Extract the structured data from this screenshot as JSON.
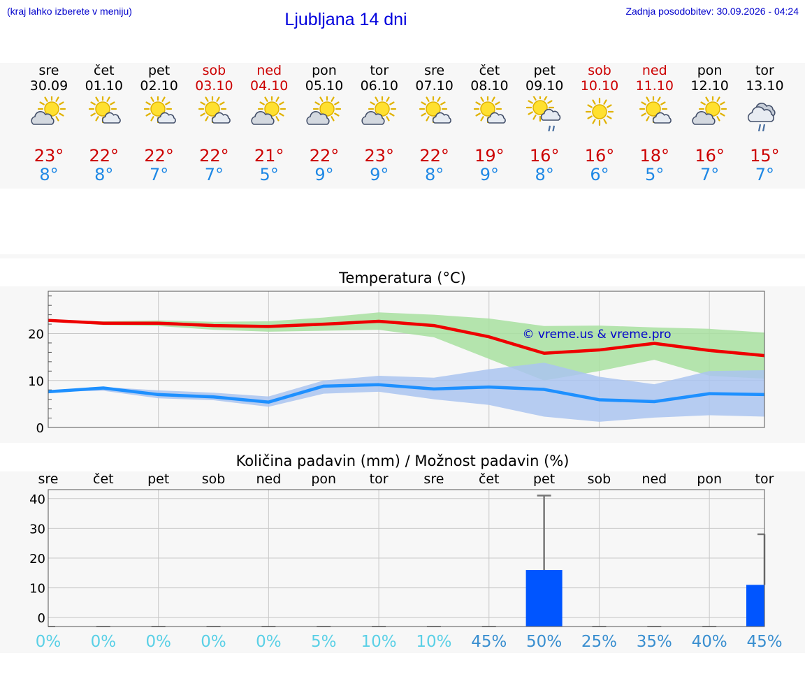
{
  "header": {
    "note": "(kraj lahko izberete v meniju)",
    "title": "Ljubljana 14 dni",
    "update": "Zadnja posodobitev: 30.09.2026 - 04:24"
  },
  "days": [
    {
      "name": "sre",
      "date": "30.09",
      "weekend": false,
      "icon": "sun-cloud-icon",
      "tmax": "23°",
      "tmin": "8°"
    },
    {
      "name": "čet",
      "date": "01.10",
      "weekend": false,
      "icon": "sun-small-cloud-icon",
      "tmax": "22°",
      "tmin": "8°"
    },
    {
      "name": "pet",
      "date": "02.10",
      "weekend": false,
      "icon": "sun-small-cloud-icon",
      "tmax": "22°",
      "tmin": "7°"
    },
    {
      "name": "sob",
      "date": "03.10",
      "weekend": true,
      "icon": "sun-small-cloud-icon",
      "tmax": "22°",
      "tmin": "7°"
    },
    {
      "name": "ned",
      "date": "04.10",
      "weekend": true,
      "icon": "sun-cloud-icon",
      "tmax": "21°",
      "tmin": "5°"
    },
    {
      "name": "pon",
      "date": "05.10",
      "weekend": false,
      "icon": "sun-cloud-icon",
      "tmax": "22°",
      "tmin": "9°"
    },
    {
      "name": "tor",
      "date": "06.10",
      "weekend": false,
      "icon": "sun-cloud-icon",
      "tmax": "23°",
      "tmin": "9°"
    },
    {
      "name": "sre",
      "date": "07.10",
      "weekend": false,
      "icon": "sun-small-cloud-icon",
      "tmax": "22°",
      "tmin": "8°"
    },
    {
      "name": "čet",
      "date": "08.10",
      "weekend": false,
      "icon": "sun-small-cloud-icon",
      "tmax": "19°",
      "tmin": "9°"
    },
    {
      "name": "pet",
      "date": "09.10",
      "weekend": false,
      "icon": "sun-cloud-rain-icon",
      "tmax": "16°",
      "tmin": "8°"
    },
    {
      "name": "sob",
      "date": "10.10",
      "weekend": true,
      "icon": "sun-icon",
      "tmax": "16°",
      "tmin": "6°"
    },
    {
      "name": "ned",
      "date": "11.10",
      "weekend": true,
      "icon": "sun-small-cloud-icon",
      "tmax": "18°",
      "tmin": "5°"
    },
    {
      "name": "pon",
      "date": "12.10",
      "weekend": false,
      "icon": "sun-cloud-icon",
      "tmax": "16°",
      "tmin": "7°"
    },
    {
      "name": "tor",
      "date": "13.10",
      "weekend": false,
      "icon": "cloud-rain-icon",
      "tmax": "15°",
      "tmin": "7°"
    }
  ],
  "colors": {
    "max_line": "#ee0000",
    "min_line": "#1e90ff",
    "max_band": "#a8e0a0",
    "min_band": "#aac4f0",
    "precip_bar": "#0055ff",
    "weekend_text": "#cc0000",
    "chance_light": "#5ad0e6",
    "chance_dark": "#3a8fd0"
  },
  "chart_data": [
    {
      "type": "line",
      "title": "Temperatura (°C)",
      "watermark": "© vreme.us & vreme.pro",
      "x": [
        "30.09",
        "01.10",
        "02.10",
        "03.10",
        "04.10",
        "05.10",
        "06.10",
        "07.10",
        "08.10",
        "09.10",
        "10.10",
        "11.10",
        "12.10",
        "13.10"
      ],
      "yticks": [
        0,
        10,
        20
      ],
      "ylim": [
        0,
        29
      ],
      "grid": true,
      "series": [
        {
          "key": "max",
          "values": [
            22.8,
            22.2,
            22.2,
            21.7,
            21.5,
            22.0,
            22.6,
            21.7,
            19.3,
            15.8,
            16.5,
            17.9,
            16.4,
            15.3
          ],
          "band_low": [
            22.6,
            21.8,
            21.6,
            20.8,
            20.4,
            20.6,
            20.8,
            19.2,
            14.6,
            10.0,
            12.0,
            14.4,
            11.0,
            10.4
          ],
          "band_high": [
            22.8,
            22.6,
            22.8,
            22.5,
            22.6,
            23.4,
            24.5,
            24.0,
            23.2,
            21.6,
            21.7,
            21.3,
            21.0,
            20.2
          ]
        },
        {
          "key": "min",
          "values": [
            7.6,
            8.4,
            7.0,
            6.5,
            5.4,
            8.8,
            9.1,
            8.2,
            8.6,
            8.1,
            5.9,
            5.5,
            7.2,
            7.0
          ],
          "band_low": [
            7.6,
            7.8,
            6.2,
            5.8,
            4.4,
            7.2,
            7.6,
            6.0,
            4.8,
            2.3,
            1.2,
            2.1,
            2.6,
            2.3
          ],
          "band_high": [
            7.8,
            8.6,
            7.9,
            7.4,
            6.6,
            10.0,
            11.0,
            10.6,
            12.4,
            13.8,
            10.8,
            9.2,
            12.0,
            12.2
          ]
        }
      ]
    },
    {
      "type": "bar",
      "title": "Količina padavin (mm) / Možnost padavin (%)",
      "categories": [
        "sre",
        "čet",
        "pet",
        "sob",
        "ned",
        "pon",
        "tor",
        "sre",
        "čet",
        "pet",
        "sob",
        "ned",
        "pon",
        "tor"
      ],
      "values": [
        0,
        0,
        0,
        0,
        0,
        0,
        0,
        0,
        0,
        16,
        0,
        0,
        0,
        11
      ],
      "error_high": [
        0,
        0,
        0,
        0,
        0,
        0,
        0,
        0,
        0,
        41,
        0,
        0,
        0,
        28
      ],
      "yticks": [
        0,
        10,
        20,
        30,
        40
      ],
      "ylim": [
        -3,
        43
      ],
      "chance": [
        "0%",
        "0%",
        "0%",
        "0%",
        "0%",
        "5%",
        "10%",
        "10%",
        "45%",
        "50%",
        "25%",
        "35%",
        "40%",
        "45%"
      ]
    }
  ]
}
